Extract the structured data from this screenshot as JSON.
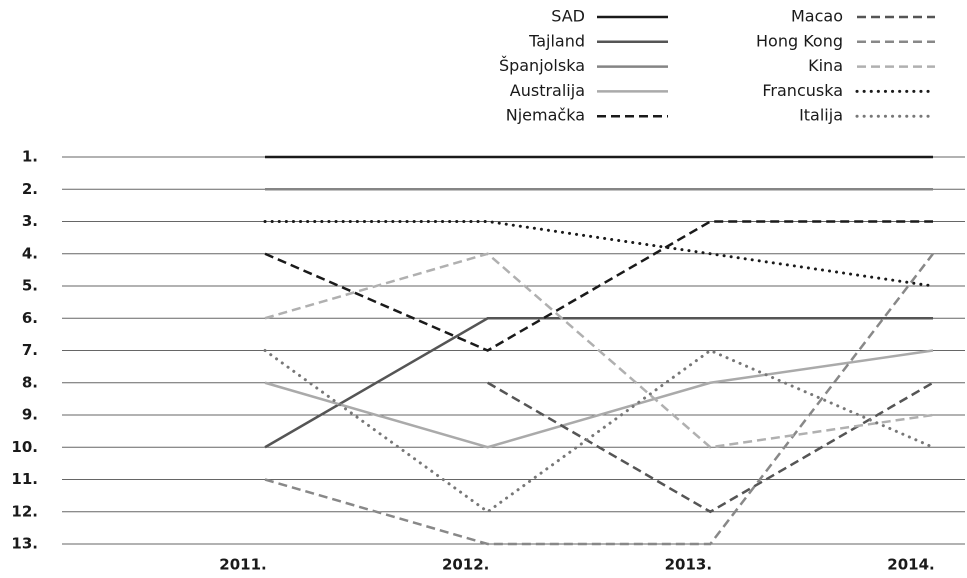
{
  "chart_data": {
    "type": "line",
    "categories": [
      "2011.",
      "2012.",
      "2013.",
      "2014."
    ],
    "ylim": [
      13,
      1
    ],
    "yticks": [
      {
        "value": 1,
        "label": "1."
      },
      {
        "value": 2,
        "label": "2."
      },
      {
        "value": 3,
        "label": "3."
      },
      {
        "value": 4,
        "label": "4."
      },
      {
        "value": 5,
        "label": "5."
      },
      {
        "value": 6,
        "label": "6."
      },
      {
        "value": 7,
        "label": "7."
      },
      {
        "value": 8,
        "label": "8."
      },
      {
        "value": 9,
        "label": "9."
      },
      {
        "value": 10,
        "label": "10."
      },
      {
        "value": 11,
        "label": "11."
      },
      {
        "value": 12,
        "label": "12."
      },
      {
        "value": 13,
        "label": "13."
      }
    ],
    "grid": true,
    "series": [
      {
        "name": "SAD",
        "color": "#1a1a1a",
        "style": "solid",
        "values": [
          1,
          1,
          1,
          1
        ]
      },
      {
        "name": "Tajland",
        "color": "#555555",
        "style": "solid",
        "values": [
          10,
          6,
          6,
          6
        ]
      },
      {
        "name": "Španjolska",
        "color": "#858585",
        "style": "solid",
        "values": [
          2,
          2,
          2,
          2
        ]
      },
      {
        "name": "Australija",
        "color": "#aaaaaa",
        "style": "solid",
        "values": [
          8,
          10,
          8,
          7
        ]
      },
      {
        "name": "Njemačka",
        "color": "#1a1a1a",
        "style": "dashed",
        "values": [
          4,
          7,
          3,
          3
        ]
      },
      {
        "name": "Macao",
        "color": "#555555",
        "style": "dashed",
        "values": [
          null,
          8,
          12,
          8
        ]
      },
      {
        "name": "Hong Kong",
        "color": "#888888",
        "style": "dashed",
        "values": [
          11,
          13,
          13,
          4
        ]
      },
      {
        "name": "Kina",
        "color": "#b0b0b0",
        "style": "dashed",
        "values": [
          6,
          4,
          10,
          9
        ]
      },
      {
        "name": "Francuska",
        "color": "#1a1a1a",
        "style": "dotted",
        "values": [
          3,
          3,
          4,
          5
        ]
      },
      {
        "name": "Italija",
        "color": "#777777",
        "style": "dotted",
        "values": [
          7,
          12,
          7,
          10
        ]
      }
    ]
  }
}
